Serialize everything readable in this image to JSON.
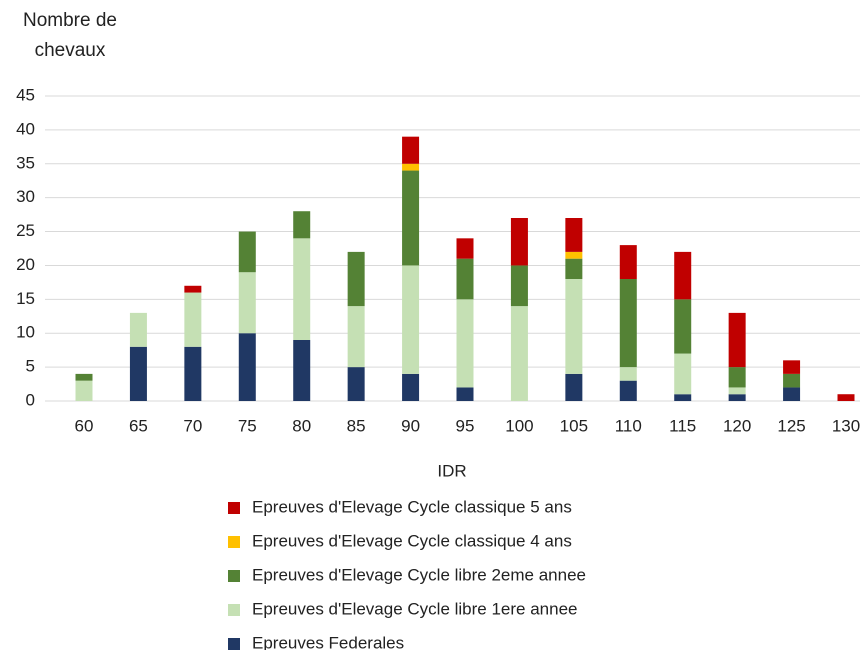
{
  "chart_data": {
    "type": "stacked_bar",
    "ylabel": "Nombre de chevaux",
    "xlabel": "IDR",
    "categories": [
      "60",
      "65",
      "70",
      "75",
      "80",
      "85",
      "90",
      "95",
      "100",
      "105",
      "110",
      "115",
      "120",
      "125",
      "130"
    ],
    "series": [
      {
        "name": "Epreuves Federales",
        "color": "#203864",
        "values": [
          0,
          8,
          8,
          10,
          9,
          5,
          4,
          2,
          0,
          4,
          3,
          1,
          1,
          2,
          0
        ]
      },
      {
        "name": "Epreuves d'Elevage Cycle libre 1ere annee",
        "color": "#c5e0b4",
        "values": [
          3,
          5,
          8,
          9,
          15,
          9,
          16,
          13,
          14,
          14,
          2,
          6,
          1,
          0,
          0
        ]
      },
      {
        "name": "Epreuves d'Elevage Cycle libre 2eme annee",
        "color": "#548235",
        "values": [
          1,
          0,
          0,
          6,
          4,
          8,
          14,
          6,
          6,
          3,
          13,
          8,
          3,
          2,
          0
        ]
      },
      {
        "name": "Epreuves d'Elevage Cycle classique 4 ans",
        "color": "#ffc000",
        "values": [
          0,
          0,
          0,
          0,
          0,
          0,
          1,
          0,
          0,
          1,
          0,
          0,
          0,
          0,
          0
        ]
      },
      {
        "name": "Epreuves d'Elevage Cycle classique 5 ans",
        "color": "#c00000",
        "values": [
          0,
          0,
          1,
          0,
          0,
          0,
          4,
          3,
          7,
          5,
          5,
          7,
          8,
          2,
          1
        ]
      }
    ],
    "ylim": [
      0,
      45
    ],
    "yticks": [
      0,
      5,
      10,
      15,
      20,
      25,
      30,
      35,
      40,
      45
    ],
    "grid": true,
    "legend": "bottom"
  }
}
